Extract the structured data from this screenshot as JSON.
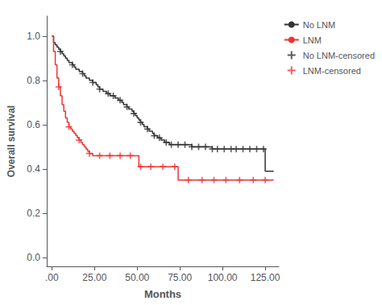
{
  "chart_data": {
    "type": "line",
    "xlabel": "Months",
    "ylabel": "Overall survival",
    "xlim": [
      -3,
      133
    ],
    "ylim": [
      -0.04,
      1.09
    ],
    "xticks": [
      {
        "value": 0,
        "label": ".00"
      },
      {
        "value": 25,
        "label": "25.00"
      },
      {
        "value": 50,
        "label": "50.00"
      },
      {
        "value": 75,
        "label": "75.00"
      },
      {
        "value": 100,
        "label": "100.00"
      },
      {
        "value": 125,
        "label": "125.00"
      }
    ],
    "yticks": [
      {
        "value": 0,
        "label": "0.0"
      },
      0.2,
      0.4,
      0.6,
      0.8,
      {
        "value": 1,
        "label": "1.0"
      }
    ],
    "grid": false,
    "legend": "upper right",
    "series": [
      {
        "name": "No LNM",
        "type": "step",
        "color": "#333333",
        "x": [
          0,
          1,
          2,
          3,
          4,
          5,
          6,
          7,
          8,
          9,
          10,
          11,
          12,
          13,
          14,
          15,
          16,
          17,
          18,
          19,
          20,
          21,
          22,
          23,
          24,
          25,
          26,
          27,
          28,
          29,
          30,
          31,
          32,
          33,
          34,
          35,
          36,
          37,
          38,
          39,
          40,
          41,
          42,
          43,
          44,
          45,
          46,
          47,
          48,
          49,
          50,
          51,
          52,
          53,
          54,
          55,
          56,
          57,
          58,
          59,
          60,
          61,
          62,
          63,
          64,
          65,
          66,
          67,
          68,
          69,
          70,
          71,
          72,
          73,
          74,
          75,
          76,
          77,
          78,
          79,
          80,
          81,
          82,
          83,
          84,
          85,
          86,
          87,
          88,
          89,
          90,
          91,
          92,
          93,
          94,
          95,
          96,
          97,
          98,
          99,
          100,
          101,
          102,
          103,
          104,
          105,
          106,
          107,
          108,
          109,
          110,
          111,
          112,
          113,
          114,
          115,
          116,
          117,
          118,
          119,
          120,
          121,
          122,
          123,
          124,
          125,
          126,
          127,
          128,
          129,
          130
        ],
        "values": [
          1.0,
          0.97,
          0.96,
          0.95,
          0.94,
          0.93,
          0.92,
          0.91,
          0.9,
          0.89,
          0.88,
          0.88,
          0.87,
          0.86,
          0.85,
          0.85,
          0.84,
          0.84,
          0.83,
          0.82,
          0.81,
          0.81,
          0.8,
          0.8,
          0.79,
          0.79,
          0.78,
          0.77,
          0.76,
          0.76,
          0.75,
          0.75,
          0.74,
          0.74,
          0.73,
          0.73,
          0.73,
          0.72,
          0.72,
          0.71,
          0.71,
          0.7,
          0.69,
          0.69,
          0.68,
          0.67,
          0.67,
          0.66,
          0.65,
          0.64,
          0.63,
          0.62,
          0.61,
          0.6,
          0.59,
          0.59,
          0.58,
          0.57,
          0.57,
          0.56,
          0.55,
          0.55,
          0.54,
          0.54,
          0.53,
          0.53,
          0.52,
          0.52,
          0.52,
          0.51,
          0.51,
          0.51,
          0.51,
          0.51,
          0.51,
          0.51,
          0.51,
          0.51,
          0.51,
          0.51,
          0.51,
          0.51,
          0.5,
          0.5,
          0.5,
          0.5,
          0.5,
          0.5,
          0.5,
          0.5,
          0.5,
          0.5,
          0.5,
          0.5,
          0.49,
          0.49,
          0.49,
          0.49,
          0.49,
          0.49,
          0.49,
          0.49,
          0.49,
          0.49,
          0.49,
          0.49,
          0.49,
          0.49,
          0.49,
          0.49,
          0.49,
          0.49,
          0.49,
          0.49,
          0.49,
          0.49,
          0.49,
          0.49,
          0.49,
          0.49,
          0.49,
          0.49,
          0.49,
          0.49,
          0.49,
          0.39,
          0.39,
          0.39,
          0.39,
          0.39,
          0.39
        ]
      },
      {
        "name": "LNM",
        "type": "step",
        "color": "#EE3333",
        "x": [
          0,
          1,
          2,
          3,
          4,
          5,
          6,
          7,
          8,
          9,
          10,
          11,
          12,
          13,
          14,
          15,
          16,
          17,
          18,
          19,
          20,
          21,
          22,
          23,
          24,
          25,
          26,
          27,
          28,
          29,
          30,
          31,
          32,
          33,
          34,
          35,
          36,
          37,
          38,
          39,
          40,
          41,
          42,
          43,
          44,
          45,
          46,
          47,
          48,
          49,
          50,
          51,
          52,
          53,
          54,
          55,
          56,
          57,
          58,
          59,
          60,
          61,
          62,
          63,
          64,
          65,
          66,
          67,
          68,
          69,
          70,
          71,
          72,
          73,
          74,
          75,
          76,
          77,
          78,
          79,
          80,
          81,
          82,
          83,
          84,
          85,
          86,
          87,
          88,
          89,
          90,
          91,
          92,
          93,
          94,
          95,
          96,
          97,
          98,
          99,
          100,
          101,
          102,
          103,
          104,
          105,
          106,
          107,
          108,
          109,
          110,
          111,
          112,
          113,
          114,
          115,
          116,
          117,
          118,
          119,
          120,
          121,
          122,
          123,
          124,
          125,
          126,
          127,
          128,
          129,
          130
        ],
        "values": [
          1.0,
          0.93,
          0.87,
          0.81,
          0.77,
          0.73,
          0.69,
          0.66,
          0.63,
          0.61,
          0.59,
          0.58,
          0.57,
          0.56,
          0.55,
          0.54,
          0.53,
          0.52,
          0.51,
          0.5,
          0.49,
          0.48,
          0.47,
          0.47,
          0.46,
          0.46,
          0.46,
          0.46,
          0.46,
          0.46,
          0.46,
          0.46,
          0.46,
          0.46,
          0.46,
          0.46,
          0.46,
          0.46,
          0.46,
          0.46,
          0.46,
          0.46,
          0.46,
          0.46,
          0.46,
          0.46,
          0.46,
          0.46,
          0.46,
          0.46,
          0.46,
          0.41,
          0.41,
          0.41,
          0.41,
          0.41,
          0.41,
          0.41,
          0.41,
          0.41,
          0.41,
          0.41,
          0.41,
          0.41,
          0.41,
          0.41,
          0.41,
          0.41,
          0.41,
          0.41,
          0.41,
          0.41,
          0.41,
          0.41,
          0.35,
          0.35,
          0.35,
          0.35,
          0.35,
          0.35,
          0.35,
          0.35,
          0.35,
          0.35,
          0.35,
          0.35,
          0.35,
          0.35,
          0.35,
          0.35,
          0.35,
          0.35,
          0.35,
          0.35,
          0.35,
          0.35,
          0.35,
          0.35,
          0.35,
          0.35,
          0.35,
          0.35,
          0.35,
          0.35,
          0.35,
          0.35,
          0.35,
          0.35,
          0.35,
          0.35,
          0.35,
          0.35,
          0.35,
          0.35,
          0.35,
          0.35,
          0.35,
          0.35,
          0.35,
          0.35,
          0.35,
          0.35,
          0.35,
          0.35,
          0.35,
          0.35,
          0.35,
          0.35,
          0.35,
          0.35,
          0.35
        ]
      },
      {
        "name": "No LNM-censored",
        "type": "scatter",
        "marker": "plus",
        "color": "#333333",
        "x": [
          5,
          12,
          18,
          24,
          28,
          33,
          36,
          40,
          44,
          48,
          52,
          56,
          60,
          63,
          67,
          70,
          74,
          78,
          82,
          86,
          90,
          94,
          97,
          101,
          105,
          108,
          112,
          116,
          120,
          124
        ],
        "values": [
          0.93,
          0.87,
          0.83,
          0.79,
          0.76,
          0.74,
          0.73,
          0.71,
          0.68,
          0.65,
          0.61,
          0.58,
          0.55,
          0.54,
          0.52,
          0.51,
          0.51,
          0.51,
          0.5,
          0.5,
          0.5,
          0.49,
          0.49,
          0.49,
          0.49,
          0.49,
          0.49,
          0.49,
          0.49,
          0.49
        ]
      },
      {
        "name": "LNM-censored",
        "type": "scatter",
        "marker": "plus",
        "color": "#EE3333",
        "x": [
          4,
          10,
          16,
          22,
          28,
          34,
          40,
          46,
          52,
          58,
          65,
          72,
          80,
          88,
          95,
          102,
          110,
          118,
          125
        ],
        "values": [
          0.77,
          0.59,
          0.53,
          0.47,
          0.46,
          0.46,
          0.46,
          0.46,
          0.41,
          0.41,
          0.41,
          0.41,
          0.35,
          0.35,
          0.35,
          0.35,
          0.35,
          0.35,
          0.35
        ]
      }
    ]
  }
}
